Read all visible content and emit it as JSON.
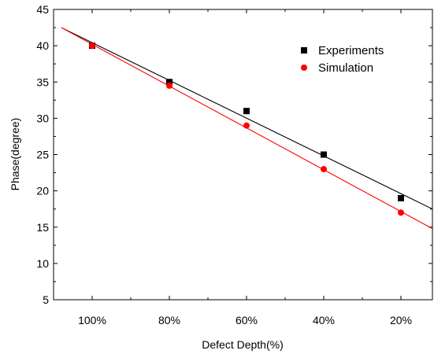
{
  "chart_data": {
    "type": "scatter",
    "xlabel": "Defect Depth(%)",
    "ylabel": "Phase(degree)",
    "categories": [
      "100%",
      "80%",
      "60%",
      "40%",
      "20%"
    ],
    "ylim": [
      5,
      45
    ],
    "yticks": [
      5,
      10,
      15,
      20,
      25,
      30,
      35,
      40,
      45
    ],
    "grid": false,
    "legend_position": "top-right",
    "series": [
      {
        "name": "Experiments",
        "marker": "square",
        "color": "#000000",
        "values": [
          40,
          35,
          31,
          25,
          19
        ],
        "fit_line": {
          "start": 42.5,
          "end": 17.5
        }
      },
      {
        "name": "Simulation",
        "marker": "circle",
        "color": "#ff0000",
        "values": [
          40,
          34.5,
          29,
          23,
          17
        ],
        "fit_line": {
          "start": 42.5,
          "end": 14.8
        }
      }
    ]
  }
}
